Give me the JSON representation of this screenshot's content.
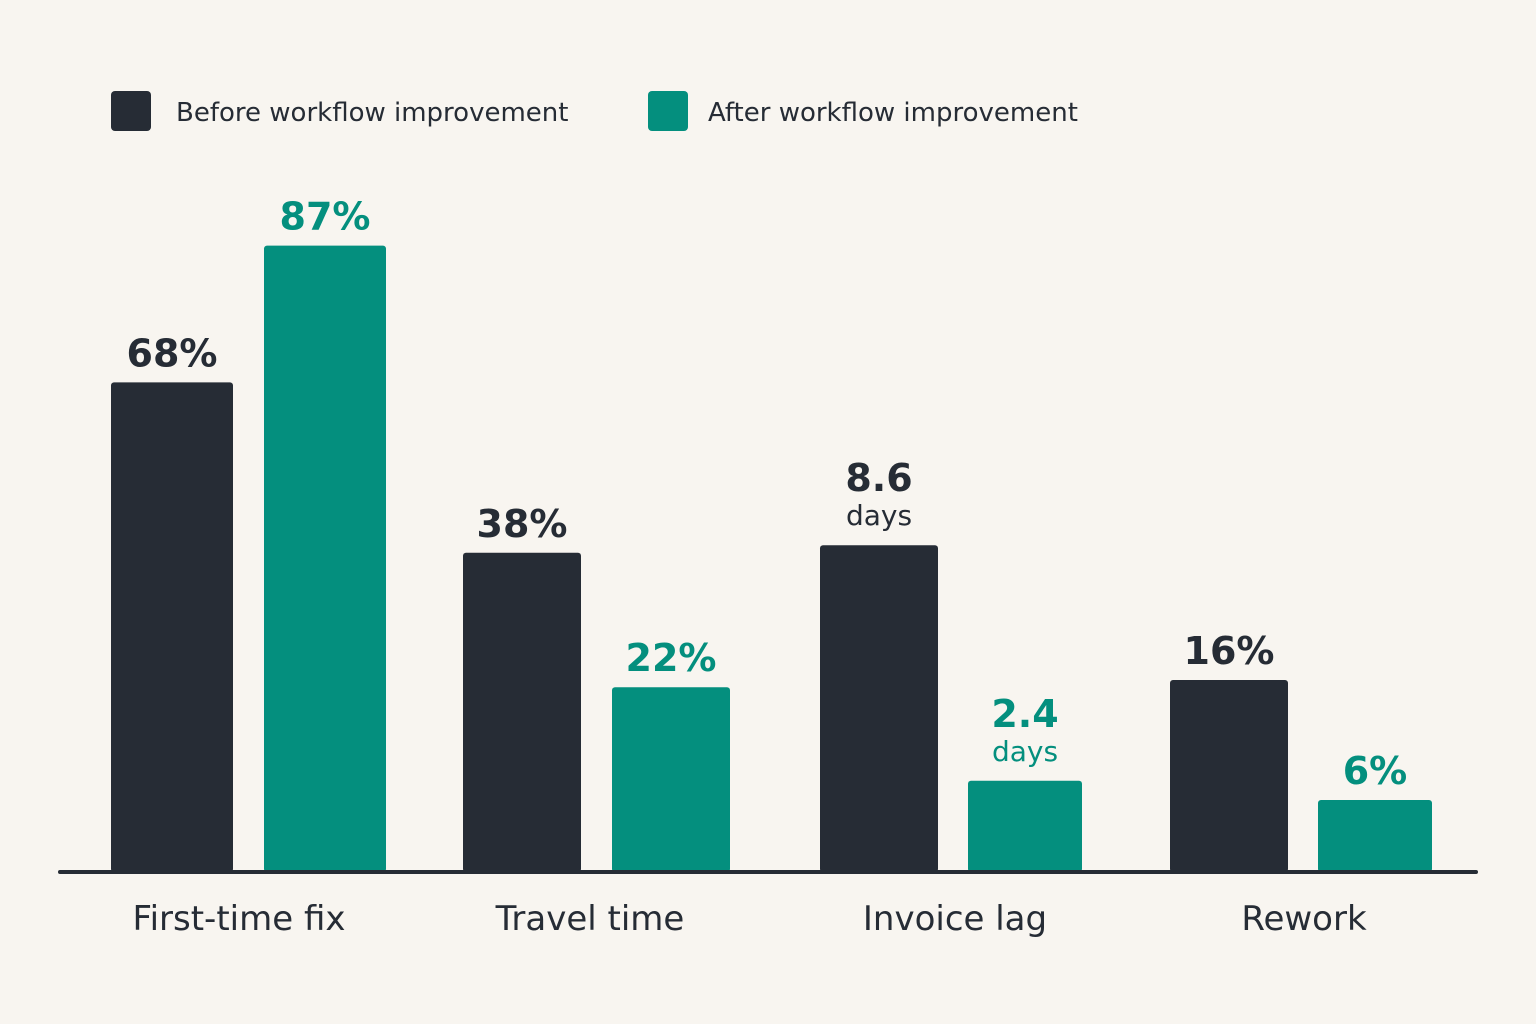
{
  "chart_data": {
    "type": "bar",
    "categories": [
      "First-time fix",
      "Travel time",
      "Invoice lag",
      "Rework"
    ],
    "series": [
      {
        "name": "Before workflow improvement",
        "color": "#262c35",
        "values": [
          68,
          38,
          8.6,
          16
        ],
        "labels": [
          {
            "value": "68%",
            "unit": ""
          },
          {
            "value": "38%",
            "unit": ""
          },
          {
            "value": "8.6",
            "unit": "days"
          },
          {
            "value": "16%",
            "unit": ""
          }
        ]
      },
      {
        "name": "After workflow improvement",
        "color": "#048f7e",
        "values": [
          87,
          22,
          2.4,
          6
        ],
        "labels": [
          {
            "value": "87%",
            "unit": ""
          },
          {
            "value": "22%",
            "unit": ""
          },
          {
            "value": "2.4",
            "unit": "days"
          },
          {
            "value": "6%",
            "unit": ""
          }
        ]
      }
    ],
    "value_label_colors": [
      "#262c35",
      "#048f7e"
    ],
    "legend_position": "top-left",
    "grid": false,
    "notes": "Bars are not drawn on a shared numeric scale; each metric group uses its own scale."
  }
}
